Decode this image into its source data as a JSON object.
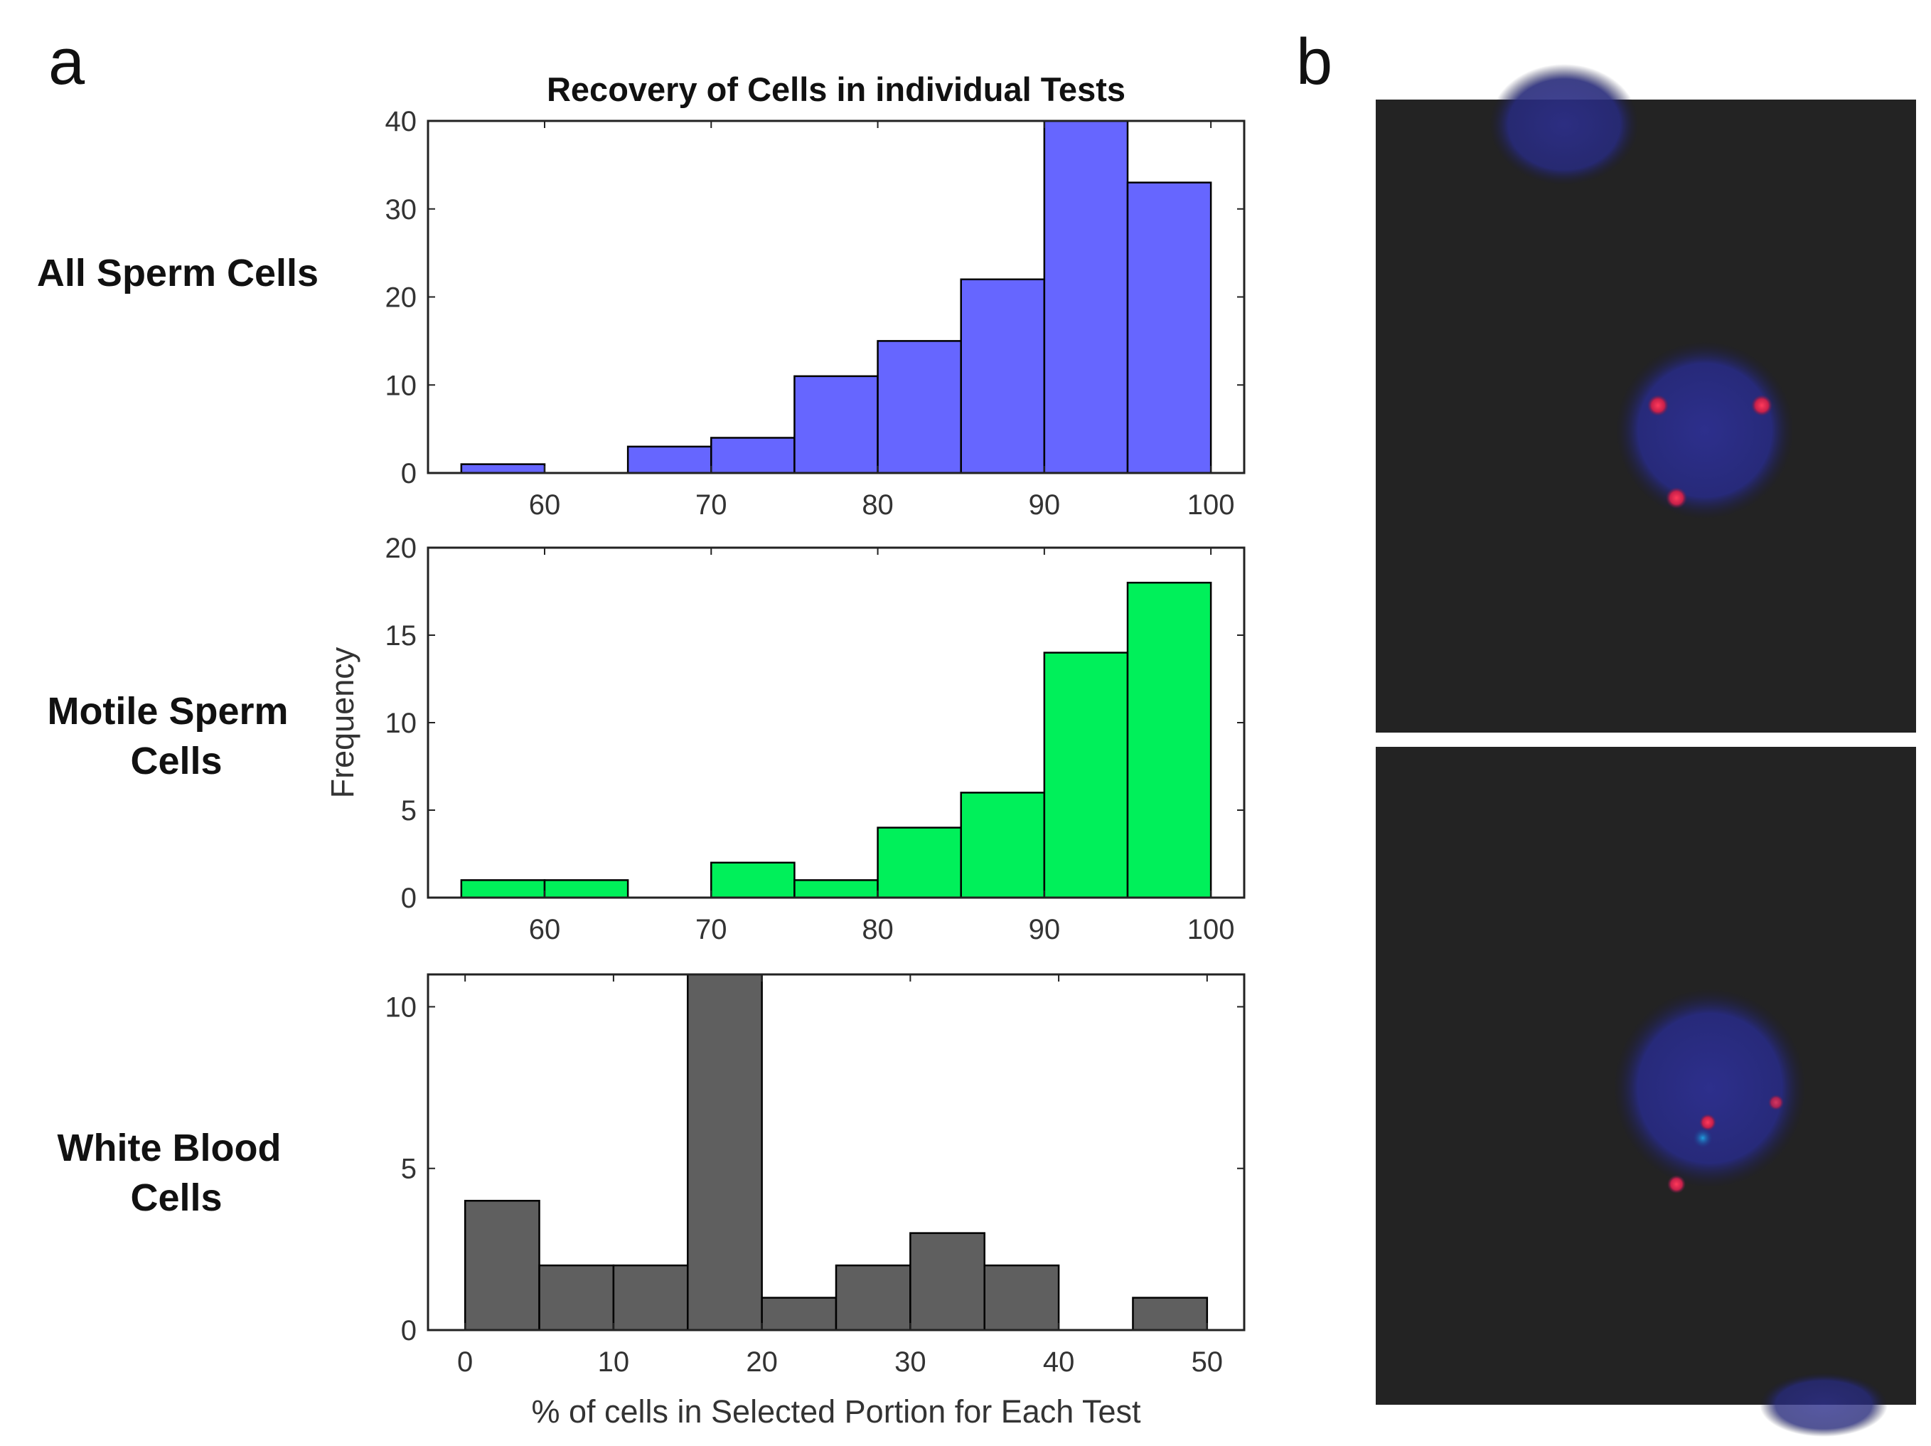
{
  "panels": {
    "a": "a",
    "b": "b"
  },
  "row_labels": {
    "all": "All Sperm Cells",
    "motile_line1": "Motile Sperm",
    "motile_line2": "Cells",
    "wbc_line1": "White Blood",
    "wbc_line2": "Cells"
  },
  "colors": {
    "blue": "#6666ff",
    "green": "#00f05a",
    "gray": "#5f5f5f"
  },
  "chart_data": [
    {
      "type": "bar",
      "name": "All Sperm Cells",
      "title": "Recovery of Cells in individual Tests",
      "xlabel": "",
      "ylabel": "",
      "bin_width": 5,
      "bins": [
        55,
        60,
        65,
        70,
        75,
        80,
        85,
        90,
        95
      ],
      "values": [
        1,
        0,
        3,
        4,
        11,
        15,
        22,
        41,
        33
      ],
      "xlim": [
        53,
        102
      ],
      "ylim": [
        0,
        40
      ],
      "xticks": [
        60,
        70,
        80,
        90,
        100
      ],
      "yticks": [
        0,
        10,
        20,
        30,
        40
      ],
      "color": "#6666ff"
    },
    {
      "type": "bar",
      "name": "Motile Sperm Cells",
      "title": "",
      "xlabel": "",
      "ylabel": "Frequency",
      "bin_width": 5,
      "bins": [
        55,
        60,
        65,
        70,
        75,
        80,
        85,
        90,
        95
      ],
      "values": [
        1,
        1,
        0,
        2,
        1,
        4,
        6,
        14,
        18
      ],
      "xlim": [
        53,
        102
      ],
      "ylim": [
        0,
        20
      ],
      "xticks": [
        60,
        70,
        80,
        90,
        100
      ],
      "yticks": [
        0,
        5,
        10,
        15,
        20
      ],
      "color": "#00f05a"
    },
    {
      "type": "bar",
      "name": "White Blood Cells",
      "title": "",
      "xlabel": "% of cells in Selected Portion for Each Test",
      "ylabel": "",
      "bin_width": 5,
      "bins": [
        0,
        5,
        10,
        15,
        20,
        25,
        30,
        35,
        40,
        45
      ],
      "values": [
        4,
        2,
        2,
        11,
        1,
        2,
        3,
        2,
        0,
        1
      ],
      "xlim": [
        -2.5,
        52.5
      ],
      "ylim": [
        0,
        11
      ],
      "xticks": [
        0,
        10,
        20,
        30,
        40,
        50
      ],
      "yticks": [
        0,
        5,
        10
      ],
      "color": "#5f5f5f"
    }
  ]
}
